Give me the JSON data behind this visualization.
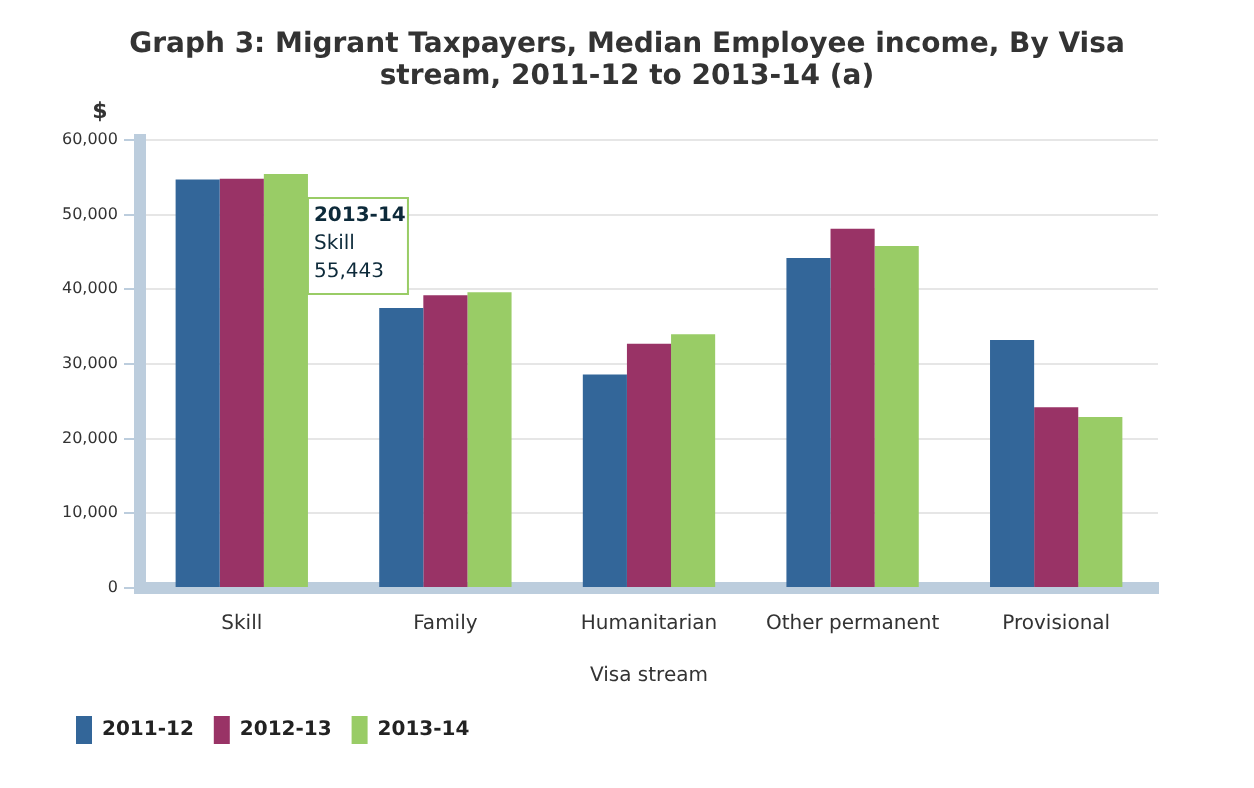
{
  "chart_data": {
    "type": "bar",
    "title": "Graph 3: Migrant Taxpayers, Median Employee income, By Visa stream, 2011-12 to 2013-14 (a)",
    "xlabel": "Visa stream",
    "ylabel": "$",
    "categories": [
      "Skill",
      "Family",
      "Humanitarian",
      "Other permanent",
      "Provisional"
    ],
    "series": [
      {
        "name": "2011-12",
        "color": "#336699",
        "values": [
          54700,
          37500,
          28600,
          44200,
          33200
        ]
      },
      {
        "name": "2012-13",
        "color": "#993366",
        "values": [
          54800,
          39200,
          32700,
          48100,
          24200
        ]
      },
      {
        "name": "2013-14",
        "color": "#99cc66",
        "values": [
          55443,
          39600,
          34000,
          45800,
          22900
        ]
      }
    ],
    "ylim": [
      0,
      60000
    ],
    "yticks": [
      {
        "value": 0,
        "label": "0"
      },
      {
        "value": 10000,
        "label": "10,000"
      },
      {
        "value": 20000,
        "label": "20,000"
      },
      {
        "value": 30000,
        "label": "30,000"
      },
      {
        "value": 40000,
        "label": "40,000"
      },
      {
        "value": 50000,
        "label": "50,000"
      },
      {
        "value": 60000,
        "label": "60,000"
      }
    ],
    "grid": "y",
    "legend": "bottom left",
    "annotations": [
      "2013-14\nSkill\n55,443"
    ]
  }
}
